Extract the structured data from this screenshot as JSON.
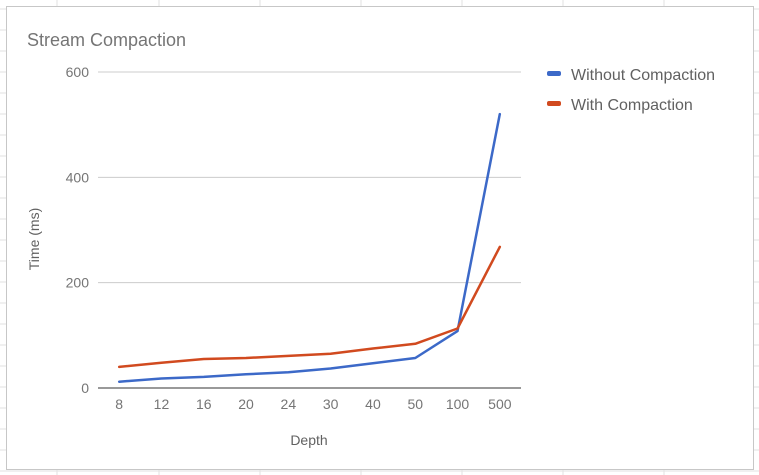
{
  "chart_data": {
    "type": "line",
    "title": "Stream Compaction",
    "xlabel": "Depth",
    "ylabel": "Time (ms)",
    "categories": [
      "8",
      "12",
      "16",
      "20",
      "24",
      "30",
      "40",
      "50",
      "100",
      "500"
    ],
    "ylim": [
      0,
      600
    ],
    "yticks": [
      0,
      200,
      400,
      600
    ],
    "grid": true,
    "legend_position": "right",
    "series": [
      {
        "name": "Without Compaction",
        "color": "#3c69c8",
        "values": [
          12,
          18,
          21,
          26,
          30,
          37,
          47,
          57,
          108,
          520
        ]
      },
      {
        "name": "With Compaction",
        "color": "#d14a1f",
        "values": [
          40,
          48,
          55,
          57,
          61,
          65,
          75,
          84,
          113,
          268
        ]
      }
    ]
  }
}
